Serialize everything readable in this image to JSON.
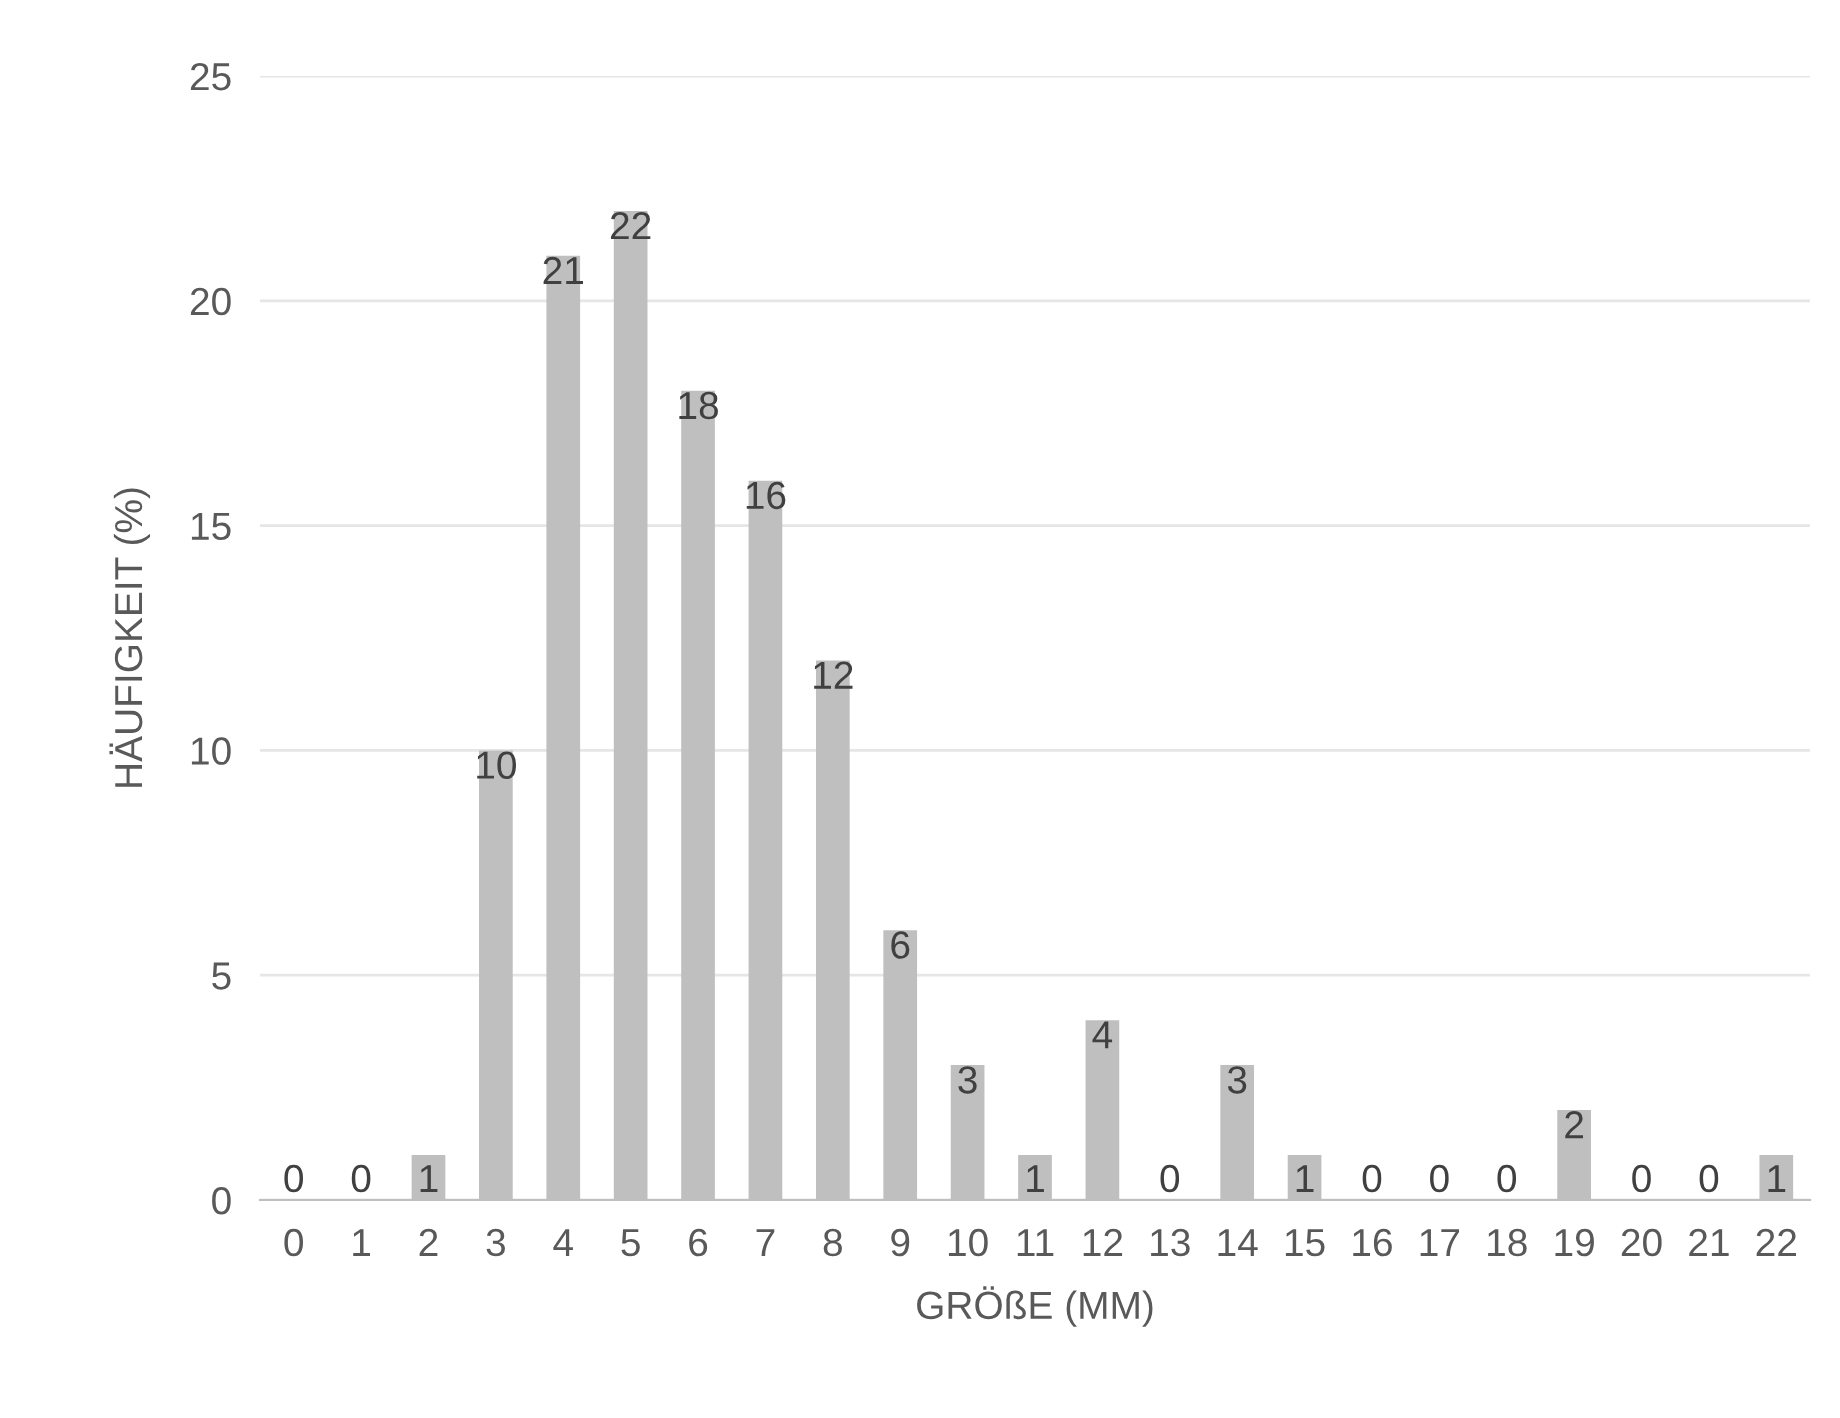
{
  "chart_data": {
    "type": "bar",
    "categories": [
      "0",
      "1",
      "2",
      "3",
      "4",
      "5",
      "6",
      "7",
      "8",
      "9",
      "10",
      "11",
      "12",
      "13",
      "14",
      "15",
      "16",
      "17",
      "18",
      "19",
      "20",
      "21",
      "22"
    ],
    "values": [
      0,
      0,
      1,
      10,
      21,
      22,
      18,
      16,
      12,
      6,
      3,
      1,
      4,
      0,
      3,
      1,
      0,
      0,
      0,
      2,
      0,
      0,
      1
    ],
    "color": "#bfbfbf",
    "xlabel": "GRÖßE (MM)",
    "ylabel": "HÄUFIGKEIT (%)",
    "ylim": [
      0,
      25
    ],
    "yticks": [
      0,
      5,
      10,
      15,
      20,
      25
    ],
    "grid": "y",
    "data_labels": true
  }
}
